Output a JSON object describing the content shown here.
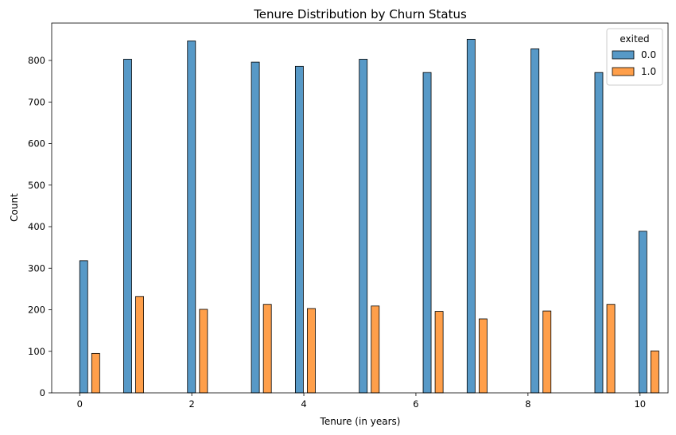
{
  "chart_data": {
    "type": "bar",
    "title": "Tenure Distribution by Churn Status",
    "xlabel": "Tenure (in years)",
    "ylabel": "Count",
    "xlim": [
      -0.5,
      10.5
    ],
    "ylim": [
      0,
      890
    ],
    "x_ticks": [
      0,
      2,
      4,
      6,
      8,
      10
    ],
    "y_ticks": [
      0,
      100,
      200,
      300,
      400,
      500,
      600,
      700,
      800
    ],
    "grid": false,
    "legend": {
      "title": "exited",
      "placement": "top-right"
    },
    "bin_width": 0.1425,
    "series": [
      {
        "name": "0.0",
        "color": "#1f77b4",
        "x": [
          0.071,
          0.855,
          1.995,
          3.135,
          3.92,
          5.06,
          6.2,
          6.985,
          8.125,
          9.265,
          10.05
        ],
        "values": [
          318,
          803,
          847,
          796,
          786,
          803,
          771,
          851,
          828,
          771,
          389
        ]
      },
      {
        "name": "1.0",
        "color": "#ff7f0e",
        "x": [
          0.285,
          1.069,
          2.209,
          3.349,
          4.134,
          5.274,
          6.414,
          7.199,
          8.339,
          9.479,
          10.264
        ],
        "values": [
          95,
          232,
          201,
          213,
          203,
          209,
          196,
          178,
          197,
          213,
          101
        ]
      }
    ]
  }
}
